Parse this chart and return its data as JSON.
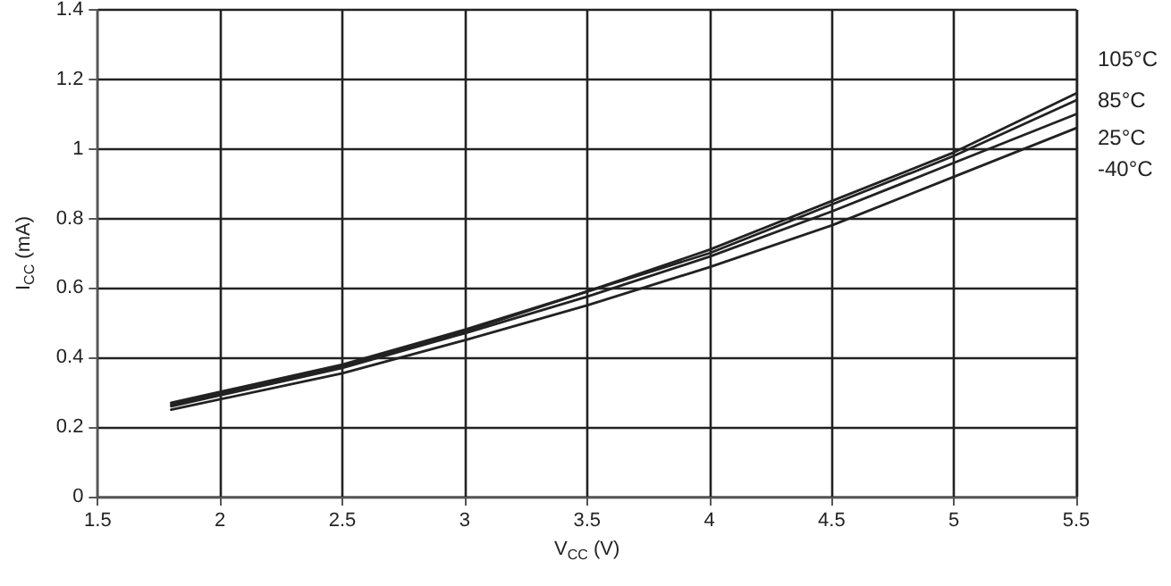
{
  "chart_data": {
    "type": "line",
    "xlabel": "V$_{CC}$ (V)",
    "ylabel": "I$_{CC}$ (mA)",
    "x": [
      1.8,
      2.5,
      3,
      3.5,
      4,
      4.5,
      5,
      5.5
    ],
    "series": [
      {
        "name": "105°C",
        "color": "#222222",
        "values": [
          0.27,
          0.38,
          0.48,
          0.59,
          0.71,
          0.85,
          0.99,
          1.16
        ]
      },
      {
        "name": "85°C",
        "color": "#222222",
        "values": [
          0.265,
          0.375,
          0.475,
          0.59,
          0.7,
          0.84,
          0.98,
          1.14
        ]
      },
      {
        "name": "25°C",
        "color": "#222222",
        "values": [
          0.26,
          0.37,
          0.47,
          0.575,
          0.69,
          0.82,
          0.96,
          1.1
        ]
      },
      {
        "name": "-40°C",
        "color": "#222222",
        "values": [
          0.25,
          0.355,
          0.45,
          0.55,
          0.66,
          0.78,
          0.92,
          1.06
        ]
      }
    ],
    "xlim": [
      1.5,
      5.5
    ],
    "xticks": [
      1.5,
      2,
      2.5,
      3,
      3.5,
      4,
      4.5,
      5,
      5.5
    ],
    "ylim": [
      0,
      1.4
    ],
    "yticks": [
      0,
      0.2,
      0.4,
      0.6,
      0.8,
      1,
      1.2,
      1.4
    ],
    "grid": true,
    "legend": false,
    "marker": "none",
    "line_style": "solid"
  }
}
